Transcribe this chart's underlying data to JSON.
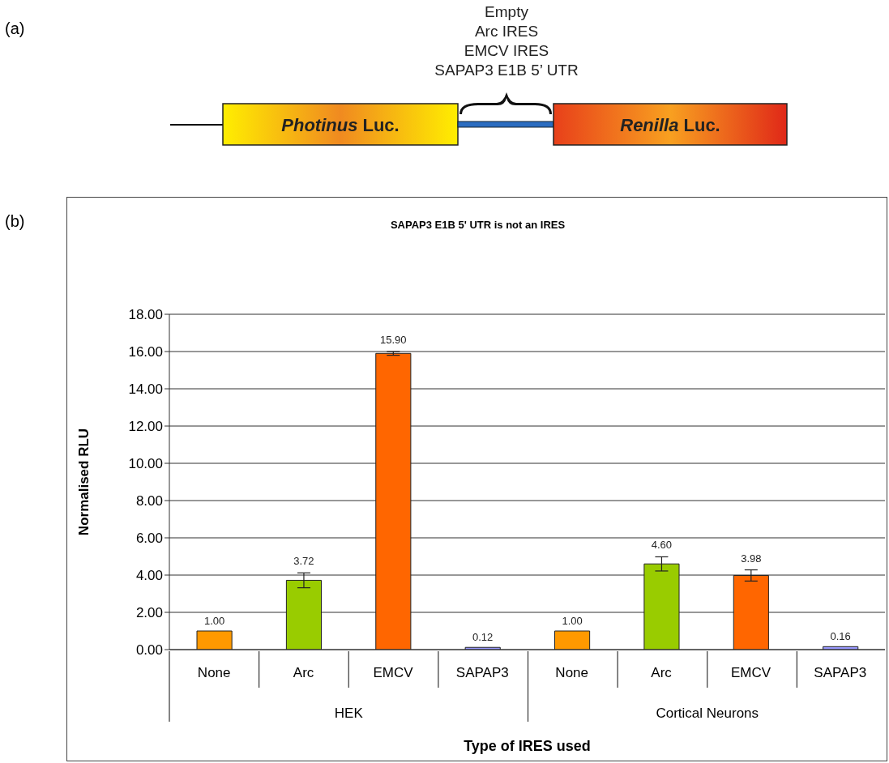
{
  "chart_data": {
    "type": "bar",
    "title": "SAPAP3 E1B 5' UTR is not an IRES",
    "xlabel": "Type of IRES used",
    "ylabel": "Normalised RLU",
    "categories": [
      "None",
      "Arc",
      "EMCV",
      "SAPAP3",
      "None",
      "Arc",
      "EMCV",
      "SAPAP3"
    ],
    "values": [
      1.0,
      3.72,
      15.9,
      0.12,
      1.0,
      4.6,
      3.98,
      0.16
    ],
    "colors": [
      "#ff9900",
      "#99cc00",
      "#ff6600",
      "#9999ff",
      "#ff9900",
      "#99cc00",
      "#ff6600",
      "#9999ff"
    ],
    "errors": [
      null,
      0.4,
      0.1,
      null,
      null,
      0.38,
      0.3,
      null
    ],
    "value_labels": [
      "1.00",
      "3.72",
      "15.90",
      "0.12",
      "1.00",
      "4.60",
      "3.98",
      "0.16"
    ],
    "ylim": [
      0,
      18
    ],
    "yticks": [
      {
        "value": 0,
        "label": "0.00"
      },
      {
        "value": 2,
        "label": "2.00"
      },
      {
        "value": 4,
        "label": "4.00"
      },
      {
        "value": 6,
        "label": "6.00"
      },
      {
        "value": 8,
        "label": "8.00"
      },
      {
        "value": 10,
        "label": "10.00"
      },
      {
        "value": 12,
        "label": "12.00"
      },
      {
        "value": 14,
        "label": "14.00"
      },
      {
        "value": 16,
        "label": "16.00"
      },
      {
        "value": 18,
        "label": "18.00"
      }
    ],
    "grid": "y",
    "legend": false,
    "annotations": [
      "(a)",
      "Empty",
      "Arc IRES",
      "EMCV IRES",
      "SAPAP3 E1B 5’ UTR",
      "Photinus Luc.",
      "Renilla Luc.",
      "(b)",
      "HEK",
      "Cortical Neurons"
    ]
  }
}
